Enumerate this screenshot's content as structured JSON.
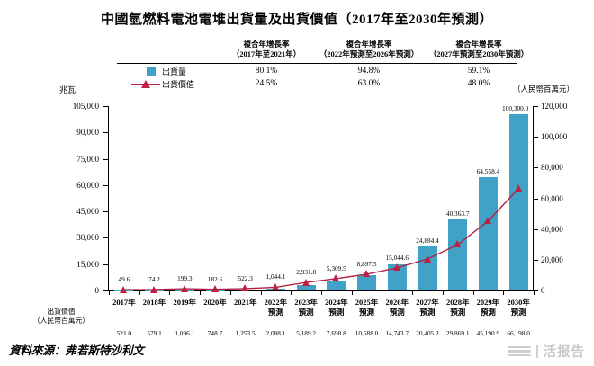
{
  "title": "中國氫燃料電池電堆出貨量及出貨價值（2017年至2030年預測）",
  "header": {
    "cagr_columns": [
      {
        "label_line1": "複合年增長率",
        "label_line2": "（2017年至2021年）",
        "shipment_cagr": "80.1%",
        "value_cagr": "24.5%"
      },
      {
        "label_line1": "複合年增長率",
        "label_line2": "（2022年預測至2026年預測）",
        "shipment_cagr": "94.8%",
        "value_cagr": "63.0%"
      },
      {
        "label_line1": "複合年增長率",
        "label_line2": "（2027年預測至2030年預測）",
        "shipment_cagr": "59.1%",
        "value_cagr": "48.0%"
      }
    ]
  },
  "legend": {
    "shipment": "出貨量",
    "value": "出貨價值"
  },
  "axes": {
    "left_unit": "兆瓦",
    "right_unit": "（人民幣百萬元）"
  },
  "colors": {
    "bar": "#3fa2c6",
    "line": "#b12346",
    "marker": "#c11f40"
  },
  "chart_data": {
    "type": "bar+line",
    "title": "中國氫燃料電池電堆出貨量及出貨價值（2017年至2030年預測）",
    "categories": [
      "2017年",
      "2018年",
      "2019年",
      "2020年",
      "2021年",
      "2022年",
      "2023年",
      "2024年",
      "2025年",
      "2026年",
      "2027年",
      "2028年",
      "2029年",
      "2030年"
    ],
    "forecast": [
      false,
      false,
      false,
      false,
      false,
      true,
      true,
      true,
      true,
      true,
      true,
      true,
      true,
      true
    ],
    "forecast_label": "預測",
    "series": [
      {
        "name": "出貨量",
        "type": "bar",
        "axis": "left",
        "unit": "兆瓦",
        "values": [
          49.6,
          74.2,
          199.3,
          182.6,
          522.3,
          1044.1,
          2931.8,
          5309.5,
          8897.5,
          15044.6,
          24884.4,
          40363.7,
          64558.4,
          100300.0
        ],
        "labels": [
          "49.6",
          "74.2",
          "199.3",
          "182.6",
          "522.3",
          "1,044.1",
          "2,931.8",
          "5,309.5",
          "8,897.5",
          "15,044.6",
          "24,884.4",
          "40,363.7",
          "64,558.4",
          "100,300.0"
        ]
      },
      {
        "name": "出貨價值",
        "type": "line",
        "axis": "right",
        "unit": "人民幣百萬元",
        "values": [
          521.0,
          579.1,
          1096.1,
          748.7,
          1253.5,
          2088.1,
          5189.2,
          7698.8,
          10588.0,
          14743.7,
          20405.2,
          29869.1,
          45190.9,
          66198.0
        ],
        "labels": [
          "521.0",
          "579.1",
          "1,096.1",
          "748.7",
          "1,253.5",
          "2,088.1",
          "5,189.2",
          "7,698.8",
          "10,588.0",
          "14,743.7",
          "20,405.2",
          "29,869.1",
          "45,190.9",
          "66,198.0"
        ]
      }
    ],
    "left_axis": {
      "min": 0,
      "max": 105000,
      "step": 15000,
      "tick_labels": [
        "0",
        "15,000",
        "30,000",
        "45,000",
        "60,000",
        "75,000",
        "90,000",
        "105,000"
      ]
    },
    "right_axis": {
      "min": 0,
      "max": 120000,
      "step": 20000,
      "tick_labels": [
        "0",
        "20,000",
        "40,000",
        "60,000",
        "80,000",
        "100,000",
        "120,000"
      ]
    },
    "grid": false,
    "legend_position": "top-left"
  },
  "footer": {
    "value_row_label_line1": "出貨價值",
    "value_row_label_line2": "（人民幣百萬元）",
    "source": "資料來源：弗若斯特沙利文",
    "watermark": "活报告"
  }
}
